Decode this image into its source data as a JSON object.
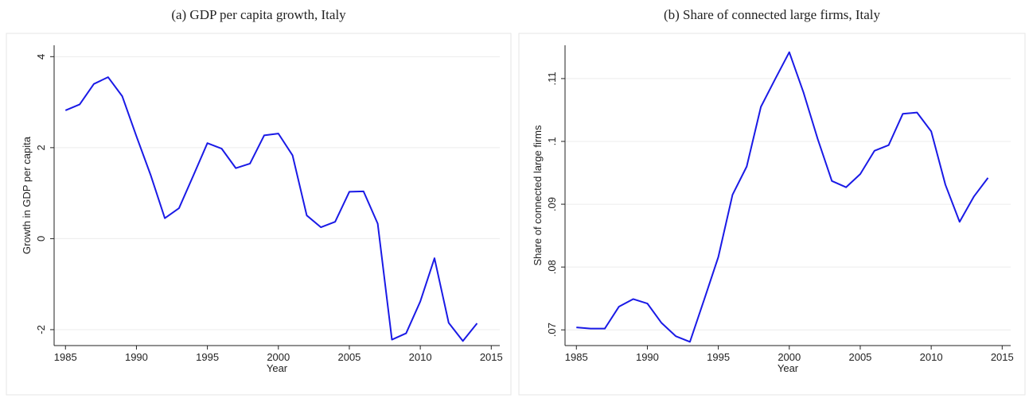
{
  "chart_data": [
    {
      "type": "line",
      "title": "(a) GDP per capita growth, Italy",
      "xlabel": "Year",
      "ylabel": "Growth in GDP per capita",
      "x": [
        1985,
        1986,
        1987,
        1988,
        1989,
        1990,
        1991,
        1992,
        1993,
        1994,
        1995,
        1996,
        1997,
        1998,
        1999,
        2000,
        2001,
        2002,
        2003,
        2004,
        2005,
        2006,
        2007,
        2008,
        2009,
        2010,
        2011,
        2012,
        2013,
        2014
      ],
      "values": [
        2.82,
        2.95,
        3.4,
        3.55,
        3.13,
        2.25,
        1.4,
        0.45,
        0.67,
        1.38,
        2.1,
        1.98,
        1.55,
        1.65,
        2.27,
        2.31,
        1.83,
        0.51,
        0.25,
        0.37,
        1.03,
        1.04,
        0.33,
        -2.22,
        -2.08,
        -1.38,
        -0.43,
        -1.85,
        -2.25,
        -1.86
      ],
      "color": "#1a1ae6",
      "xlim": [
        1984.2,
        2015.6
      ],
      "xticks": [
        1985,
        1990,
        1995,
        2000,
        2005,
        2010,
        2015
      ],
      "ylim": [
        -2.35,
        4.25
      ],
      "yticks": [
        -2,
        0,
        2,
        4
      ],
      "grid": true
    },
    {
      "type": "line",
      "title": "(b) Share of connected large firms, Italy",
      "xlabel": "Year",
      "ylabel": "Share of connected large firms",
      "x": [
        1985,
        1986,
        1987,
        1988,
        1989,
        1990,
        1991,
        1992,
        1993,
        1994,
        1995,
        1996,
        1997,
        1998,
        1999,
        2000,
        2001,
        2002,
        2003,
        2004,
        2005,
        2006,
        2007,
        2008,
        2009,
        2010,
        2011,
        2012,
        2013,
        2014
      ],
      "values": [
        0.0704,
        0.0702,
        0.0702,
        0.0737,
        0.0749,
        0.0742,
        0.0711,
        0.069,
        0.0681,
        0.0748,
        0.0816,
        0.0915,
        0.096,
        0.1055,
        0.1099,
        0.1142,
        0.1078,
        0.1004,
        0.0937,
        0.0927,
        0.0948,
        0.0985,
        0.0994,
        0.1044,
        0.1046,
        0.1016,
        0.0931,
        0.0872,
        0.0912,
        0.0942
      ],
      "color": "#1a1ae6",
      "xlim": [
        1984.2,
        2015.6
      ],
      "xticks": [
        1985,
        1990,
        1995,
        2000,
        2005,
        2010,
        2015
      ],
      "ylim": [
        0.0675,
        0.1153
      ],
      "yticks": [
        {
          "value": 0.07,
          "label": ".07"
        },
        {
          "value": 0.08,
          "label": ".08"
        },
        {
          "value": 0.09,
          "label": ".09"
        },
        {
          "value": 0.1,
          "label": ".1"
        },
        {
          "value": 0.11,
          "label": ".11"
        }
      ],
      "grid": true
    }
  ]
}
